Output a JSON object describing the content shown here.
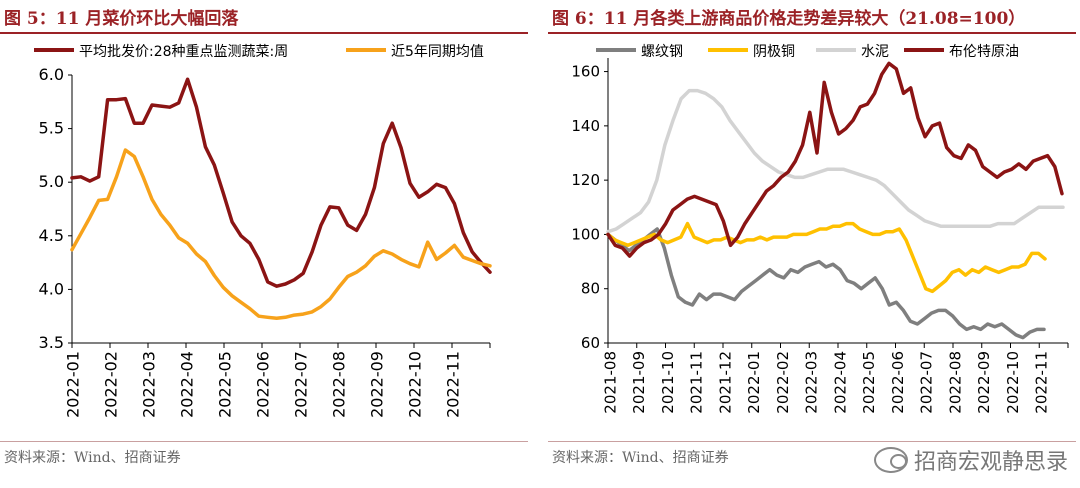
{
  "left": {
    "title": "图 5：11 月菜价环比大幅回落",
    "source": "资料来源：Wind、招商证券"
  },
  "right": {
    "title": "图 6：11 月各类上游商品价格走势差异较大（21.08=100）",
    "source": "资料来源：Wind、招商证券",
    "watermark": "招商宏观静思录"
  },
  "chart_data": [
    {
      "type": "line",
      "title": "图 5：11 月菜价环比大幅回落",
      "xlabel": "",
      "ylabel": "",
      "x_ticks": [
        "2022-01",
        "2022-02",
        "2022-03",
        "2022-04",
        "2022-05",
        "2022-06",
        "2022-07",
        "2022-08",
        "2022-09",
        "2022-10",
        "2022-11"
      ],
      "ylim": [
        3.5,
        6.0
      ],
      "y_ticks": [
        "3.5",
        "4.0",
        "4.5",
        "5.0",
        "5.5",
        "6.0"
      ],
      "grid": false,
      "legend_position": "top",
      "series": [
        {
          "name": "平均批发价:28种重点监测蔬菜:周",
          "color": "#8b1414",
          "values": [
            5.04,
            5.05,
            5.01,
            5.05,
            5.77,
            5.77,
            5.78,
            5.55,
            5.55,
            5.72,
            5.71,
            5.7,
            5.74,
            5.96,
            5.7,
            5.33,
            5.16,
            4.9,
            4.63,
            4.5,
            4.43,
            4.28,
            4.07,
            4.03,
            4.05,
            4.09,
            4.15,
            4.35,
            4.6,
            4.77,
            4.76,
            4.6,
            4.55,
            4.7,
            4.95,
            5.36,
            5.55,
            5.32,
            4.99,
            4.86,
            4.91,
            4.98,
            4.95,
            4.8,
            4.53,
            4.35,
            4.25,
            4.16
          ]
        },
        {
          "name": "近5年同期均值",
          "color": "#f7a21b",
          "values": [
            4.37,
            4.52,
            4.67,
            4.83,
            4.84,
            5.05,
            5.3,
            5.24,
            5.05,
            4.84,
            4.7,
            4.6,
            4.48,
            4.43,
            4.33,
            4.26,
            4.13,
            4.02,
            3.94,
            3.88,
            3.82,
            3.75,
            3.74,
            3.73,
            3.74,
            3.76,
            3.77,
            3.79,
            3.84,
            3.91,
            4.02,
            4.12,
            4.16,
            4.22,
            4.31,
            4.36,
            4.33,
            4.28,
            4.24,
            4.21,
            4.44,
            4.28,
            4.34,
            4.41,
            4.3,
            4.27,
            4.24,
            4.22
          ]
        }
      ]
    },
    {
      "type": "line",
      "title": "图 6：11 月各类上游商品价格走势差异较大（21.08=100）",
      "xlabel": "",
      "ylabel": "",
      "x_ticks": [
        "2021-08",
        "2021-09",
        "2021-10",
        "2021-11",
        "2021-12",
        "2022-01",
        "2022-02",
        "2022-03",
        "2022-04",
        "2022-05",
        "2022-06",
        "2022-07",
        "2022-08",
        "2022-09",
        "2022-10",
        "2022-11"
      ],
      "ylim": [
        60,
        165
      ],
      "y_ticks": [
        "60",
        "80",
        "100",
        "120",
        "140",
        "160"
      ],
      "grid": false,
      "legend_position": "top",
      "series": [
        {
          "name": "螺纹钢",
          "color": "#7f7f7f",
          "values": [
            100,
            98,
            96,
            94,
            96,
            98,
            100,
            102,
            95,
            85,
            77,
            75,
            74,
            78,
            76,
            78,
            78,
            77,
            76,
            79,
            81,
            83,
            85,
            87,
            85,
            84,
            87,
            86,
            88,
            89,
            90,
            88,
            89,
            87,
            83,
            82,
            80,
            82,
            84,
            80,
            74,
            75,
            72,
            68,
            67,
            69,
            71,
            72,
            72,
            70,
            67,
            65,
            66,
            65,
            67,
            66,
            67,
            65,
            63,
            62,
            64,
            65,
            65
          ]
        },
        {
          "name": "阴极铜",
          "color": "#ffc000",
          "values": [
            100,
            98,
            97,
            96,
            97,
            98,
            99,
            100,
            98,
            97,
            98,
            99,
            104,
            99,
            98,
            97,
            98,
            98,
            99,
            98,
            97,
            98,
            98,
            99,
            98,
            99,
            99,
            99,
            100,
            100,
            100,
            101,
            102,
            102,
            103,
            103,
            104,
            104,
            102,
            101,
            100,
            100,
            101,
            101,
            102,
            98,
            92,
            86,
            80,
            79,
            81,
            83,
            86,
            87,
            85,
            87,
            86,
            88,
            87,
            86,
            87,
            88,
            88,
            89,
            93,
            93,
            91
          ]
        },
        {
          "name": "水泥",
          "color": "#d3d3d3",
          "values": [
            101,
            102,
            104,
            106,
            108,
            112,
            120,
            133,
            142,
            150,
            153,
            153,
            152,
            150,
            147,
            142,
            138,
            134,
            130,
            127,
            125,
            123,
            122,
            121,
            121,
            122,
            123,
            124,
            124,
            124,
            123,
            122,
            121,
            120,
            118,
            115,
            112,
            109,
            107,
            105,
            104,
            103,
            103,
            103,
            103,
            103,
            103,
            103,
            104,
            104,
            104,
            106,
            108,
            110,
            110,
            110,
            110
          ]
        },
        {
          "name": "布伦特原油",
          "color": "#8b1414",
          "values": [
            100,
            96,
            95,
            92,
            95,
            97,
            98,
            100,
            104,
            109,
            111,
            113,
            114,
            113,
            112,
            111,
            105,
            96,
            99,
            104,
            108,
            112,
            116,
            118,
            121,
            123,
            127,
            133,
            145,
            130,
            156,
            145,
            137,
            139,
            142,
            147,
            148,
            152,
            159,
            163,
            161,
            152,
            154,
            143,
            136,
            140,
            141,
            132,
            129,
            128,
            133,
            131,
            125,
            123,
            121,
            123,
            124,
            126,
            124,
            127,
            128,
            129,
            125,
            115
          ]
        }
      ]
    }
  ]
}
